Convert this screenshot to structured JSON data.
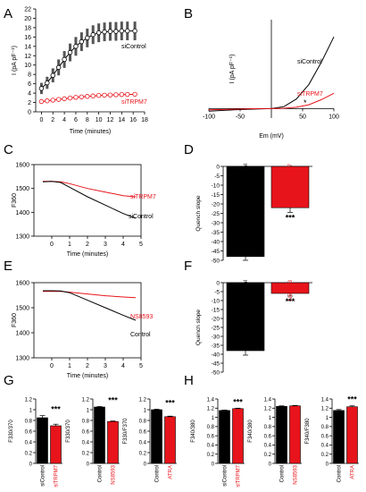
{
  "panel_labels": {
    "A": "A",
    "B": "B",
    "C": "C",
    "D": "D",
    "E": "E",
    "F": "F",
    "G": "G",
    "H": "H"
  },
  "colors": {
    "control": "#000000",
    "treated": "#e8141b",
    "axis": "#000000"
  },
  "chart_data": [
    {
      "id": "A",
      "type": "line",
      "xlabel": "Time (minutes)",
      "ylabel": "I (pA pF⁻¹)",
      "xlim": [
        -1,
        18
      ],
      "ylim": [
        0,
        22
      ],
      "xticks": [
        0,
        2,
        4,
        6,
        8,
        10,
        12,
        14,
        16,
        18
      ],
      "yticks": [
        0,
        2,
        4,
        6,
        8,
        10,
        12,
        14,
        16,
        18,
        20,
        22
      ],
      "series": [
        {
          "name": "siControl",
          "x": [
            0,
            1,
            2,
            3,
            4,
            5,
            6,
            7,
            8,
            9,
            10,
            11,
            12,
            13,
            14,
            15,
            16.3
          ],
          "y": [
            5,
            6.2,
            7.8,
            9.5,
            11.2,
            12.7,
            14.0,
            15.0,
            15.8,
            16.5,
            16.9,
            17.1,
            17.2,
            17.2,
            17.3,
            17.3,
            17.3
          ],
          "err": [
            1.2,
            1.3,
            1.5,
            1.7,
            1.8,
            1.9,
            2.0,
            2.0,
            2.0,
            2.0,
            2.0,
            2.0,
            2.0,
            2.0,
            2.0,
            2.0,
            2.0
          ]
        },
        {
          "name": "siTRPM7",
          "x": [
            0,
            1,
            2,
            3,
            4,
            5,
            6,
            7,
            8,
            9,
            10,
            11,
            12,
            13,
            14,
            15,
            16.3
          ],
          "y": [
            2.2,
            2.35,
            2.5,
            2.65,
            2.8,
            2.95,
            3.1,
            3.2,
            3.3,
            3.4,
            3.5,
            3.55,
            3.6,
            3.65,
            3.7,
            3.72,
            3.75
          ],
          "err": [
            0.3,
            0.3,
            0.3,
            0.3,
            0.35,
            0.35,
            0.35,
            0.35,
            0.4,
            0.4,
            0.4,
            0.4,
            0.4,
            0.4,
            0.4,
            0.4,
            0.4
          ]
        }
      ]
    },
    {
      "id": "B",
      "type": "line",
      "xlabel": "Em (mV)",
      "ylabel": "I (pA pF⁻¹)",
      "xlim": [
        -100,
        100
      ],
      "ylim": [
        -1.5,
        14
      ],
      "xticks": [
        -100,
        -50,
        50,
        100
      ],
      "annotation": "*",
      "series": [
        {
          "name": "siControl",
          "x": [
            -100,
            -60,
            -20,
            0,
            20,
            40,
            60,
            80,
            100
          ],
          "y": [
            -0.4,
            -0.2,
            -0.05,
            0,
            0.3,
            1.5,
            3.8,
            7.3,
            11.3
          ]
        },
        {
          "name": "siTRPM7",
          "x": [
            -100,
            -60,
            -20,
            0,
            20,
            40,
            60,
            80,
            100
          ],
          "y": [
            -0.2,
            -0.1,
            0,
            0,
            0.05,
            0.2,
            0.6,
            1.4,
            2.4
          ]
        }
      ]
    },
    {
      "id": "C",
      "type": "line",
      "xlabel": "Time (minutes)",
      "ylabel": "F360",
      "xlim": [
        -1,
        5
      ],
      "ylim": [
        1300,
        1600
      ],
      "xticks": [
        0,
        1,
        2,
        3,
        4,
        5
      ],
      "yticks": [
        1300,
        1400,
        1500,
        1600
      ],
      "series": [
        {
          "name": "siTRPM7",
          "x": [
            -0.5,
            0,
            0.5,
            1,
            2,
            3,
            4,
            4.7
          ],
          "y": [
            1530,
            1530,
            1528,
            1520,
            1500,
            1485,
            1470,
            1465
          ]
        },
        {
          "name": "siControl",
          "x": [
            -0.5,
            0,
            0.5,
            1,
            2,
            3,
            4,
            4.7
          ],
          "y": [
            1528,
            1530,
            1525,
            1505,
            1465,
            1430,
            1395,
            1375
          ]
        }
      ]
    },
    {
      "id": "D",
      "type": "bar",
      "ylabel": "Quench slope",
      "ylim": [
        -50,
        0
      ],
      "yticks": [
        0,
        -5,
        -10,
        -15,
        -20,
        -25,
        -30,
        -35,
        -40,
        -45,
        -50
      ],
      "categories": [
        "siControl",
        "siTRPM7"
      ],
      "values": [
        -48,
        -22
      ],
      "errors": [
        2,
        2.5
      ],
      "significance": "***"
    },
    {
      "id": "E",
      "type": "line",
      "xlabel": "Time (minutes)",
      "ylabel": "F360",
      "xlim": [
        -1,
        5
      ],
      "ylim": [
        1300,
        1600
      ],
      "xticks": [
        0,
        1,
        2,
        3,
        4,
        5
      ],
      "yticks": [
        1300,
        1400,
        1500,
        1600
      ],
      "series": [
        {
          "name": "NS8593",
          "x": [
            -0.5,
            0,
            0.5,
            1,
            2,
            3,
            4,
            4.7
          ],
          "y": [
            1565,
            1565,
            1565,
            1562,
            1555,
            1548,
            1543,
            1540
          ]
        },
        {
          "name": "Control",
          "x": [
            -0.5,
            0,
            0.5,
            1,
            2,
            3,
            4,
            4.7
          ],
          "y": [
            1568,
            1568,
            1567,
            1560,
            1530,
            1500,
            1470,
            1450
          ]
        }
      ]
    },
    {
      "id": "F",
      "type": "bar",
      "ylabel": "Quench slope",
      "ylim": [
        -50,
        0
      ],
      "yticks": [
        0,
        -5,
        -10,
        -15,
        -20,
        -25,
        -30,
        -35,
        -40,
        -45,
        -50
      ],
      "categories": [
        "Control",
        "NS8593"
      ],
      "values": [
        -38,
        -6
      ],
      "errors": [
        2.5,
        1.5
      ],
      "significance": "***"
    },
    {
      "id": "G1",
      "type": "bar",
      "ylabel": "F330/370",
      "ylim": [
        0,
        1.2
      ],
      "yticks": [
        0,
        0.2,
        0.4,
        0.6,
        0.8,
        1.0,
        1.2
      ],
      "categories": [
        "siControl",
        "siTRPM7"
      ],
      "values": [
        0.85,
        0.7
      ],
      "errors": [
        0.04,
        0.03
      ],
      "significance": "***"
    },
    {
      "id": "G2",
      "type": "bar",
      "ylabel": "F330/370",
      "ylim": [
        0,
        1.2
      ],
      "yticks": [
        0,
        0.2,
        0.4,
        0.6,
        0.8,
        1.0,
        1.2
      ],
      "categories": [
        "Control",
        "NS8593"
      ],
      "values": [
        1.05,
        0.78
      ],
      "errors": [
        0.01,
        0.01
      ],
      "significance": "***"
    },
    {
      "id": "G3",
      "type": "bar",
      "ylabel": "F330/F370",
      "ylim": [
        0,
        1.2
      ],
      "yticks": [
        0,
        0.2,
        0.4,
        0.6,
        0.8,
        1.0,
        1.2
      ],
      "categories": [
        "Control",
        "ATRA"
      ],
      "values": [
        1.0,
        0.87
      ],
      "errors": [
        0.01,
        0.01
      ],
      "significance": "***"
    },
    {
      "id": "H1",
      "type": "bar",
      "ylabel": "F340/380",
      "ylim": [
        0,
        1.4
      ],
      "yticks": [
        0,
        0.2,
        0.4,
        0.6,
        0.8,
        1.0,
        1.2,
        1.4
      ],
      "categories": [
        "siControl",
        "siTRPM7"
      ],
      "values": [
        1.15,
        1.19
      ],
      "errors": [
        0.01,
        0.01
      ],
      "significance": "***"
    },
    {
      "id": "H2",
      "type": "bar",
      "ylabel": "F340/380",
      "ylim": [
        0,
        1.4
      ],
      "yticks": [
        0,
        0.2,
        0.4,
        0.6,
        0.8,
        1.0,
        1.2,
        1.4
      ],
      "categories": [
        "Control",
        "NS8593"
      ],
      "values": [
        1.24,
        1.25
      ],
      "errors": [
        0.01,
        0.01
      ],
      "significance": ""
    },
    {
      "id": "H3",
      "type": "bar",
      "ylabel": "F340/F380",
      "ylim": [
        0,
        1.4
      ],
      "yticks": [
        0,
        0.2,
        0.4,
        0.6,
        0.8,
        1.0,
        1.2,
        1.4
      ],
      "categories": [
        "Control",
        "ATRA"
      ],
      "values": [
        1.15,
        1.23
      ],
      "errors": [
        0.02,
        0.02
      ],
      "significance": "***"
    }
  ]
}
